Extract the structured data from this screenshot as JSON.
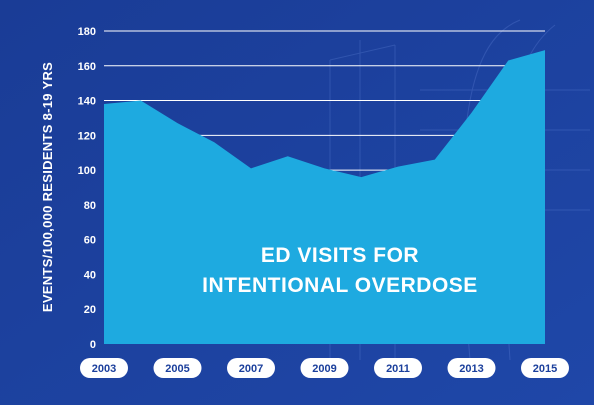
{
  "chart_data": {
    "type": "area",
    "x": [
      2003,
      2004,
      2005,
      2006,
      2007,
      2008,
      2009,
      2010,
      2011,
      2012,
      2013,
      2014,
      2015
    ],
    "series": [
      {
        "values": [
          138,
          140,
          127,
          116,
          101,
          108,
          101,
          96,
          102,
          106,
          133,
          163,
          169
        ]
      }
    ],
    "xtick_labels": [
      "2003",
      "2005",
      "2007",
      "2009",
      "2011",
      "2013",
      "2015"
    ],
    "ytick_labels": [
      "0",
      "20",
      "40",
      "60",
      "80",
      "100",
      "120",
      "140",
      "160",
      "180"
    ],
    "ylabel": "EVENTS/100,000 RESIDENTS 8-19 YRS",
    "xlabel": "",
    "ylim": [
      0,
      180
    ],
    "grid": true,
    "annotation": [
      "ED VISITS FOR",
      "INTENTIONAL OVERDOSE"
    ]
  },
  "colors": {
    "background": "#1b3f9c",
    "area_fill": "#1eaae0",
    "gridline": "#ffffff",
    "tick_pill": "#ffffff",
    "text": "#ffffff"
  }
}
